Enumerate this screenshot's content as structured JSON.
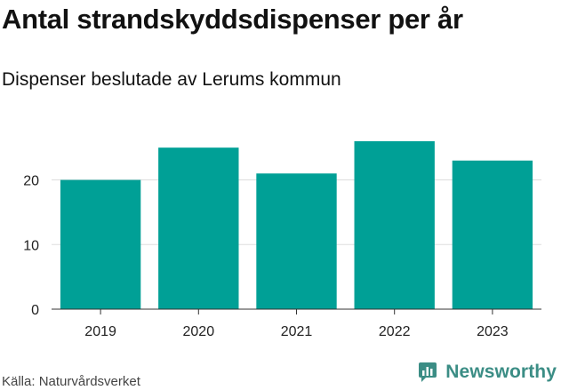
{
  "chart_data": {
    "type": "bar",
    "title": "Antal strandskyddsdispenser per år",
    "subtitle": "Dispenser beslutade av Lerums kommun",
    "categories": [
      "2019",
      "2020",
      "2021",
      "2022",
      "2023"
    ],
    "values": [
      20,
      25,
      21,
      26,
      23
    ],
    "xlabel": "",
    "ylabel": "",
    "ylim": [
      0,
      27.5
    ],
    "yticks": [
      0,
      10,
      20
    ],
    "grid": true,
    "bar_color": "#00a096",
    "grid_color": "#dddddd"
  },
  "footer": {
    "source": "Källa: Naturvårdsverket",
    "brand": "Newsworthy",
    "brand_icon": "newsworthy-logo-icon",
    "brand_color": "#3b8d85"
  }
}
